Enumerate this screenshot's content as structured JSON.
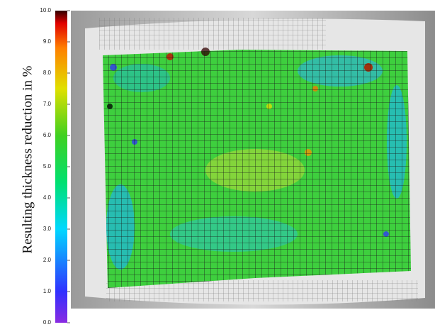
{
  "chart_data": {
    "type": "colorbar",
    "ylabel": "Resulting thickness reduction in %",
    "ylim": [
      0,
      10
    ],
    "yticks": [
      {
        "value": 0,
        "label": "0.0"
      },
      {
        "value": 1,
        "label": "1.0"
      },
      {
        "value": 2,
        "label": "2.0"
      },
      {
        "value": 3,
        "label": "3.0"
      },
      {
        "value": 4,
        "label": "4.0"
      },
      {
        "value": 5,
        "label": "5.0"
      },
      {
        "value": 6,
        "label": "6.0"
      },
      {
        "value": 7,
        "label": "7.0"
      },
      {
        "value": 8,
        "label": "8.0"
      },
      {
        "value": 9,
        "label": "9.0"
      },
      {
        "value": 10,
        "label": "10.0"
      }
    ]
  }
}
